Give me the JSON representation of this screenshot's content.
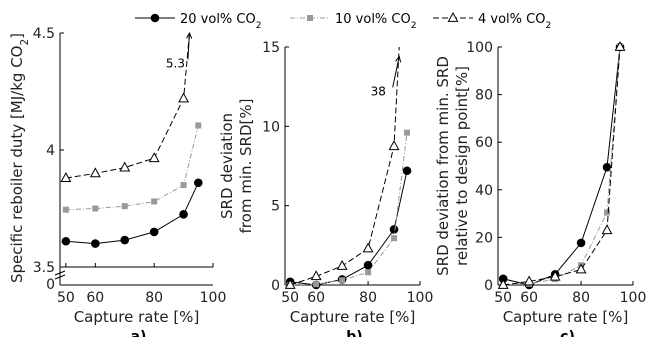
{
  "legend": [
    {
      "series": "s20",
      "label": "20 vol% CO",
      "sub": "2"
    },
    {
      "series": "s10",
      "label": "10 vol% CO",
      "sub": "2"
    },
    {
      "series": "s4",
      "label": "4 vol% CO",
      "sub": "2"
    }
  ],
  "styles": {
    "s20": {
      "color": "#000000",
      "dash": "",
      "marker": "circle-filled"
    },
    "s10": {
      "color": "#999999",
      "dash": "5 2 1 2",
      "marker": "square-filled"
    },
    "s4": {
      "color": "#000000",
      "dash": "6 3",
      "marker": "triangle-open"
    }
  },
  "chart_data": [
    {
      "type": "line",
      "panel_label": "a)",
      "ylabel": "Specific reboiler duty [MJ/kg CO",
      "ylabel_sub": "2",
      "ylabel_tail": "]",
      "xlabel": "Capture rate [%]",
      "xlim": [
        48,
        100
      ],
      "xticks": [
        50,
        60,
        80,
        100
      ],
      "ylim": [
        3.5,
        4.5
      ],
      "yticks": [
        3.5,
        4,
        4.5
      ],
      "ytick_labels": [
        "3.5",
        "4",
        "4.5"
      ],
      "y_axis_break": true,
      "y_break_label": "0",
      "series": [
        {
          "key": "s20",
          "x": [
            50,
            60,
            70,
            80,
            90,
            95
          ],
          "y": [
            3.61,
            3.6,
            3.615,
            3.65,
            3.725,
            3.86
          ]
        },
        {
          "key": "s10",
          "x": [
            50,
            60,
            70,
            80,
            90,
            95
          ],
          "y": [
            3.745,
            3.75,
            3.76,
            3.78,
            3.85,
            4.105
          ]
        },
        {
          "key": "s4",
          "x": [
            50,
            60,
            70,
            80,
            90,
            92
          ],
          "y": [
            3.88,
            3.9,
            3.925,
            3.965,
            4.22,
            4.5
          ]
        }
      ],
      "annotation": {
        "text": "5.3",
        "x": 84,
        "y": 4.37,
        "arrow_to": [
          92,
          4.5
        ]
      }
    },
    {
      "type": "line",
      "panel_label": "b)",
      "ylabel": "SRD deviation",
      "ylabel2": "from min. SRD[%]",
      "xlabel": "Capture rate [%]",
      "xlim": [
        48,
        100
      ],
      "xticks": [
        50,
        60,
        80,
        100
      ],
      "ylim": [
        0,
        15
      ],
      "yticks": [
        0,
        5,
        10,
        15
      ],
      "ytick_labels": [
        "0",
        "5",
        "10",
        "15"
      ],
      "series": [
        {
          "key": "s20",
          "x": [
            50,
            60,
            70,
            80,
            90,
            95
          ],
          "y": [
            0.2,
            0.0,
            0.35,
            1.25,
            3.5,
            7.2
          ]
        },
        {
          "key": "s10",
          "x": [
            50,
            60,
            70,
            80,
            90,
            95
          ],
          "y": [
            0.0,
            0.05,
            0.3,
            0.8,
            2.95,
            9.6
          ]
        },
        {
          "key": "s4",
          "x": [
            50,
            60,
            70,
            80,
            90,
            92
          ],
          "y": [
            0.0,
            0.55,
            1.2,
            2.3,
            8.75,
            15
          ]
        }
      ],
      "annotation": {
        "text": "38",
        "x": 81,
        "y": 12.2,
        "arrow_to": [
          92,
          14.4
        ]
      }
    },
    {
      "type": "line",
      "panel_label": "c)",
      "ylabel": "SRD deviation from min. SRD",
      "ylabel2": "relative to design point[%]",
      "xlabel": "Capture rate [%]",
      "xlim": [
        48,
        100
      ],
      "xticks": [
        50,
        60,
        80,
        100
      ],
      "ylim": [
        0,
        100
      ],
      "yticks": [
        0,
        20,
        40,
        60,
        80,
        100
      ],
      "ytick_labels": [
        "0",
        "20",
        "40",
        "60",
        "80",
        "100"
      ],
      "series": [
        {
          "key": "s20",
          "x": [
            50,
            60,
            70,
            80,
            90,
            95
          ],
          "y": [
            2.6,
            0.0,
            4.5,
            17.7,
            49.5,
            100
          ]
        },
        {
          "key": "s10",
          "x": [
            50,
            60,
            70,
            80,
            90,
            95
          ],
          "y": [
            0.0,
            0.5,
            2.5,
            8.3,
            30.5,
            100
          ]
        },
        {
          "key": "s4",
          "x": [
            50,
            60,
            70,
            80,
            90,
            95
          ],
          "y": [
            0.0,
            1.5,
            3.5,
            6.5,
            23,
            100
          ]
        }
      ]
    }
  ]
}
